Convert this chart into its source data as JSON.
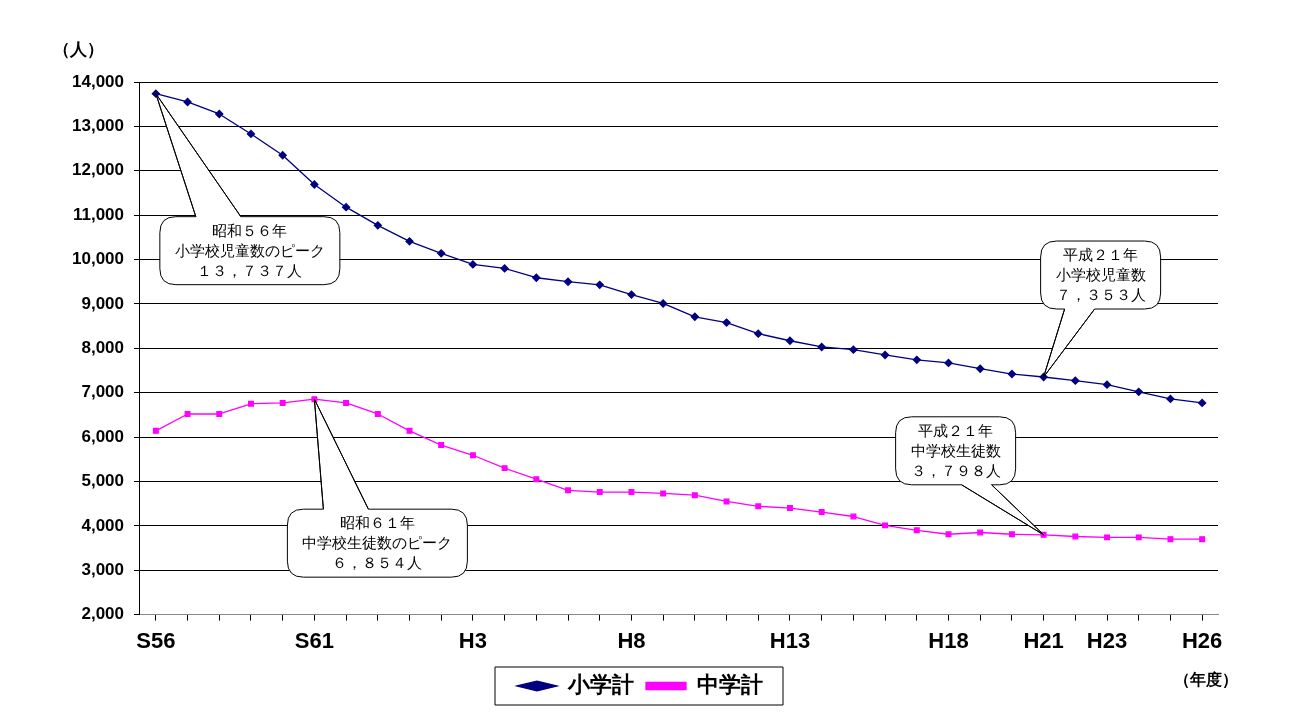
{
  "chart_data": {
    "type": "line",
    "ylabel": "（人）",
    "xlabel": "（年度）",
    "categories": [
      "S56",
      null,
      null,
      null,
      null,
      "S61",
      null,
      null,
      null,
      null,
      "H3",
      null,
      null,
      null,
      null,
      "H8",
      null,
      null,
      null,
      null,
      "H13",
      null,
      null,
      null,
      null,
      "H18",
      null,
      null,
      "H21",
      null,
      "H23",
      null,
      null,
      "H26"
    ],
    "series": [
      {
        "name": "小学計",
        "color": "#000080",
        "marker": "diamond",
        "values": [
          13737,
          13550,
          13280,
          12830,
          12350,
          11690,
          11180,
          10770,
          10410,
          10140,
          9890,
          9800,
          9590,
          9500,
          9430,
          9210,
          9010,
          8710,
          8580,
          8330,
          8170,
          8030,
          7970,
          7850,
          7740,
          7670,
          7540,
          7420,
          7353,
          7270,
          7180,
          7020,
          6860,
          6770
        ]
      },
      {
        "name": "中学計",
        "color": "#ff00ff",
        "marker": "square",
        "values": [
          6140,
          6520,
          6520,
          6750,
          6770,
          6854,
          6770,
          6520,
          6140,
          5820,
          5590,
          5300,
          5050,
          4800,
          4760,
          4760,
          4730,
          4690,
          4550,
          4440,
          4400,
          4310,
          4210,
          4010,
          3900,
          3810,
          3850,
          3810,
          3798,
          3760,
          3740,
          3740,
          3700,
          3700
        ]
      }
    ],
    "ylim": [
      2000,
      14000
    ],
    "yticks": [
      {
        "value": 2000,
        "label": "2,000"
      },
      {
        "value": 3000,
        "label": "3,000"
      },
      {
        "value": 4000,
        "label": "4,000"
      },
      {
        "value": 5000,
        "label": "5,000"
      },
      {
        "value": 6000,
        "label": "6,000"
      },
      {
        "value": 7000,
        "label": "7,000"
      },
      {
        "value": 8000,
        "label": "8,000"
      },
      {
        "value": 9000,
        "label": "9,000"
      },
      {
        "value": 10000,
        "label": "10,000"
      },
      {
        "value": 11000,
        "label": "11,000"
      },
      {
        "value": 12000,
        "label": "12,000"
      },
      {
        "value": 13000,
        "label": "13,000"
      },
      {
        "value": 14000,
        "label": "14,000"
      }
    ],
    "grid": "y",
    "legend": "bottom",
    "line_style": "solid",
    "annotations": [
      {
        "text": "昭和５６年小学校児童数のピーク１３，７３７人",
        "x": "S56",
        "y": 13737
      },
      {
        "text": "昭和６１年中学校生徒数のピーク６，８５４人",
        "x": "S61",
        "y": 6854
      },
      {
        "text": "平成２１年小学校児童数７，３５３人",
        "x": "H21",
        "y": 7353
      },
      {
        "text": "平成２１年中学校生徒数３，７９８人",
        "x": "H21",
        "y": 3798
      }
    ]
  }
}
